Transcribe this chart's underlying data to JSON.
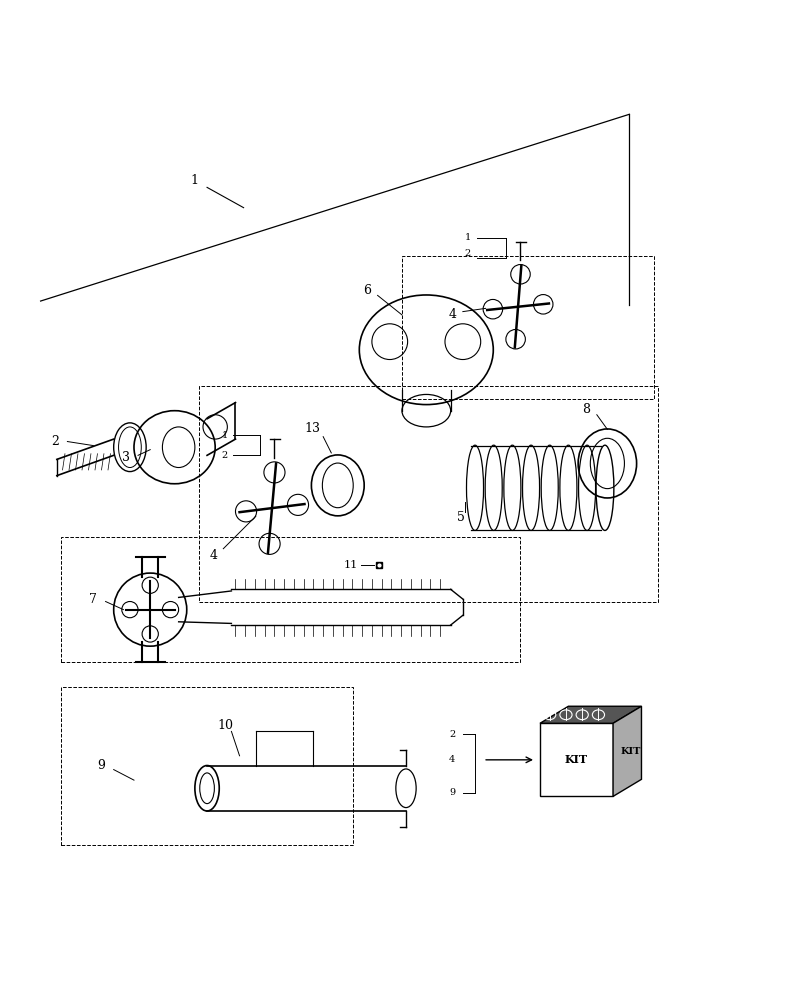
{
  "bg_color": "#ffffff",
  "line_color": "#000000",
  "label_fontsize": 9,
  "small_fontsize": 7
}
